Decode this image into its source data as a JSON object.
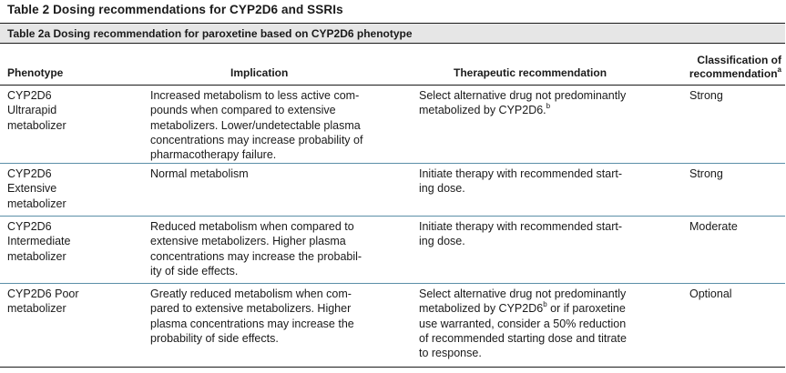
{
  "table": {
    "title": "Table 2  Dosing recommendations for CYP2D6 and SSRIs",
    "subtitle": "Table 2a Dosing recommendation for paroxetine based on CYP2D6 phenotype"
  },
  "headers": {
    "phenotype": "Phenotype",
    "implication": "Implication",
    "therapeutic": "Therapeutic recommendation",
    "classification_line1": "Classification of",
    "classification_line2": "recommendation",
    "classification_sup": "a"
  },
  "rows": [
    {
      "phenotype": "CYP2D6\nUltrarapid\nmetabolizer",
      "implication": "Increased metabolism to less active com-\npounds when compared to extensive\nmetabolizers. Lower/undetectable plasma\nconcentrations may increase probability of\npharmacotherapy failure.",
      "therapeutic": "Select alternative drug not predominantly\nmetabolized by CYP2D6.",
      "therapeutic_sup": "b",
      "therapeutic_after": "",
      "classification": "Strong"
    },
    {
      "phenotype": "CYP2D6\nExtensive\nmetabolizer",
      "implication": "Normal metabolism",
      "therapeutic": "Initiate therapy with recommended start-\ning dose.",
      "therapeutic_sup": "",
      "therapeutic_after": "",
      "classification": "Strong"
    },
    {
      "phenotype": "CYP2D6\nIntermediate\nmetabolizer",
      "implication": "Reduced metabolism when compared to\nextensive metabolizers. Higher plasma\nconcentrations may increase the probabil-\nity of side effects.",
      "therapeutic": "Initiate therapy with recommended start-\ning dose.",
      "therapeutic_sup": "",
      "therapeutic_after": "",
      "classification": "Moderate"
    },
    {
      "phenotype": "CYP2D6 Poor\nmetabolizer",
      "implication": "Greatly reduced metabolism when com-\npared to extensive metabolizers. Higher\nplasma concentrations may increase the\nprobability of side effects.",
      "therapeutic": "Select alternative drug not predominantly\nmetabolized by CYP2D6",
      "therapeutic_sup": "b",
      "therapeutic_after": " or if paroxetine\nuse warranted, consider a 50% reduction\nof recommended starting dose and titrate\nto response.",
      "classification": "Optional"
    }
  ]
}
